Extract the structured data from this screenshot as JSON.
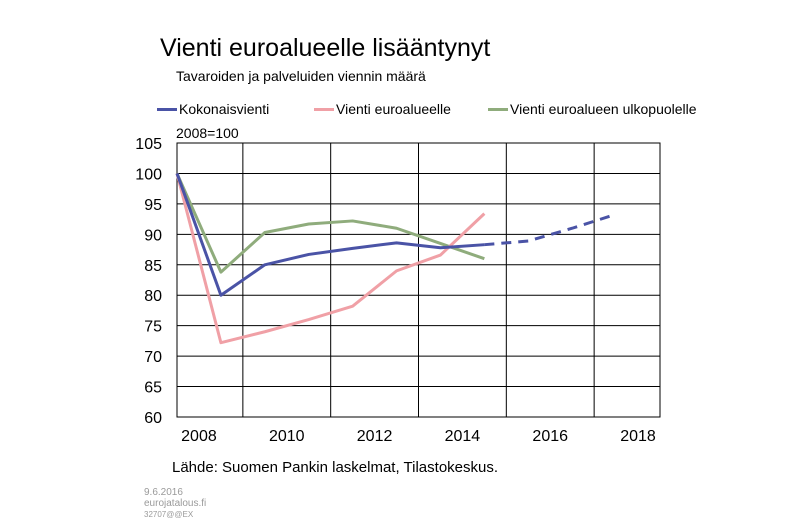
{
  "chart_data": {
    "type": "line",
    "title": "Vienti euroalueelle lisääntynyt",
    "subtitle": "Tavaroiden ja palveluiden viennin määrä",
    "ylabel": "2008=100",
    "xlabel": "",
    "source": "Lähde: Suomen Pankin laskelmat, Tilastokeskus.",
    "ylim": [
      60,
      105
    ],
    "yticks": [
      105,
      100,
      95,
      90,
      85,
      80,
      75,
      70,
      65,
      60
    ],
    "xlim": [
      2007.5,
      2018.5
    ],
    "xticks": [
      2008,
      2010,
      2012,
      2014,
      2016,
      2018
    ],
    "grid": true,
    "legend_position": "top",
    "series": [
      {
        "name": "Kokonaisvienti",
        "color": "#4a53a6",
        "x": [
          2007.5,
          2008.5,
          2009.5,
          2010.5,
          2011.5,
          2012.5,
          2013.5,
          2014.5
        ],
        "values": [
          100,
          80.0,
          85.0,
          86.7,
          87.7,
          88.6,
          87.8,
          88.3
        ],
        "forecast_x": [
          2014.5,
          2015.5,
          2016.5,
          2017.5
        ],
        "forecast_values": [
          88.3,
          88.9,
          91.0,
          93.3
        ]
      },
      {
        "name": "Vienti euroalueelle",
        "color": "#f0a0a6",
        "x": [
          2007.5,
          2008.5,
          2009.5,
          2010.5,
          2011.5,
          2012.5,
          2013.5,
          2014.5
        ],
        "values": [
          100,
          72.2,
          74.0,
          76.0,
          78.2,
          84.0,
          86.6,
          93.4
        ]
      },
      {
        "name": "Vienti euroalueen ulkopuolelle",
        "color": "#8fac7c",
        "x": [
          2007.5,
          2008.5,
          2009.5,
          2010.5,
          2011.5,
          2012.5,
          2013.5,
          2014.5
        ],
        "values": [
          100,
          83.8,
          90.3,
          91.7,
          92.2,
          91.0,
          88.5,
          86.0
        ]
      }
    ]
  },
  "footer": {
    "date": "9.6.2016",
    "site": "eurojatalous.fi",
    "code": "32707@@EX"
  }
}
